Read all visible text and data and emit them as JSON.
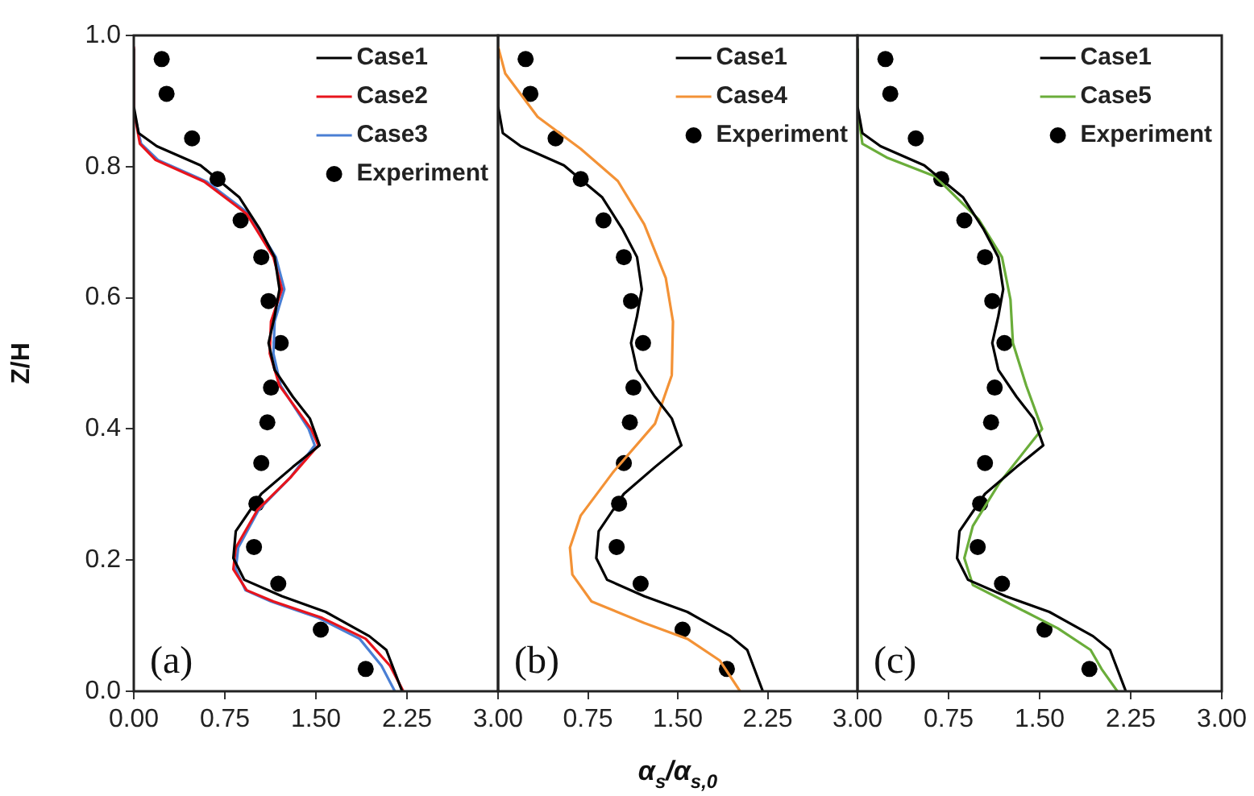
{
  "chart_data": [
    {
      "type": "line",
      "ylabel": "Z/H",
      "xlim": [
        0,
        3
      ],
      "ylim": [
        0,
        1
      ],
      "xticks": [
        {
          "value": 0,
          "label": "0.00"
        },
        {
          "value": 0.75,
          "label": "0.75"
        },
        {
          "value": 1.5,
          "label": "1.50"
        },
        {
          "value": 2.25,
          "label": "2.25"
        },
        {
          "value": 3,
          "label": "3.00"
        }
      ],
      "yticks": [
        {
          "value": 0,
          "label": "0.0"
        },
        0.2,
        0.4,
        0.6,
        0.8,
        {
          "value": 1,
          "label": "1.0"
        }
      ],
      "grid": false,
      "legend": "top right",
      "annotations": [
        "(a)"
      ],
      "series": [
        {
          "name": "Case1",
          "type": "line",
          "marker": "none",
          "color": "#000000",
          "x": [
            2.21,
            2.08,
            1.94,
            1.58,
            1.22,
            0.91,
            0.82,
            0.84,
            1.05,
            1.31,
            1.53,
            1.45,
            1.31,
            1.16,
            1.11,
            1.16,
            1.2,
            1.16,
            1.04,
            0.87,
            0.55,
            0.19,
            0.04,
            0,
            0
          ],
          "values": [
            0,
            0.063,
            0.084,
            0.121,
            0.145,
            0.17,
            0.203,
            0.244,
            0.301,
            0.342,
            0.375,
            0.416,
            0.449,
            0.49,
            0.531,
            0.572,
            0.613,
            0.662,
            0.704,
            0.753,
            0.802,
            0.831,
            0.851,
            0.892,
            0.98
          ]
        },
        {
          "name": "Case2",
          "type": "line",
          "marker": "none",
          "color": "#e8141c",
          "x": [
            2.22,
            2.11,
            1.91,
            1.55,
            1.15,
            0.93,
            0.82,
            0.84,
            1.02,
            1.29,
            1.52,
            1.46,
            1.2,
            1.12,
            1.13,
            1.22,
            1.15,
            0.93,
            0.58,
            0.18,
            0.05,
            0.01,
            0
          ],
          "values": [
            0,
            0.039,
            0.08,
            0.112,
            0.137,
            0.154,
            0.186,
            0.219,
            0.277,
            0.326,
            0.375,
            0.4,
            0.466,
            0.515,
            0.564,
            0.613,
            0.662,
            0.728,
            0.777,
            0.81,
            0.835,
            0.876,
            0.983
          ]
        },
        {
          "name": "Case3",
          "type": "line",
          "marker": "none",
          "color": "#4a7fd4",
          "x": [
            2.15,
            2.04,
            1.86,
            1.52,
            1.13,
            0.92,
            0.84,
            0.86,
            1.03,
            1.29,
            1.49,
            1.44,
            1.21,
            1.15,
            1.16,
            1.24,
            1.17,
            0.95,
            0.6,
            0.2,
            0.06,
            0.01,
            0
          ],
          "values": [
            0,
            0.039,
            0.08,
            0.112,
            0.137,
            0.154,
            0.186,
            0.219,
            0.277,
            0.326,
            0.375,
            0.4,
            0.466,
            0.515,
            0.564,
            0.613,
            0.662,
            0.728,
            0.777,
            0.81,
            0.835,
            0.876,
            0.983
          ]
        },
        {
          "name": "Experiment",
          "type": "scatter",
          "marker": "circle",
          "color": "#000000",
          "x": [
            0.23,
            0.27,
            0.48,
            0.69,
            0.88,
            1.05,
            1.11,
            1.21,
            1.13,
            1.1,
            1.05,
            1.01,
            0.99,
            1.19,
            1.54,
            1.91
          ],
          "values": [
            0.964,
            0.911,
            0.843,
            0.781,
            0.718,
            0.662,
            0.595,
            0.531,
            0.463,
            0.41,
            0.348,
            0.286,
            0.22,
            0.164,
            0.094,
            0.034
          ]
        }
      ]
    },
    {
      "type": "line",
      "xlabel": "α$_{s}$/α$_{s,0}$",
      "xlim": [
        0,
        3
      ],
      "ylim": [
        0,
        1
      ],
      "xticks": [
        {
          "value": 0,
          "label": null
        },
        {
          "value": 0.75,
          "label": "0.75"
        },
        {
          "value": 1.5,
          "label": "1.50"
        },
        {
          "value": 2.25,
          "label": "2.25"
        },
        {
          "value": 3,
          "label": "3.00"
        }
      ],
      "tick_labels": "x",
      "grid": false,
      "legend": "top right",
      "annotations": [
        "(b)"
      ],
      "series": [
        {
          "name": "Case1",
          "type": "line",
          "marker": "none",
          "color": "#000000",
          "x": [
            2.21,
            2.08,
            1.94,
            1.58,
            1.22,
            0.91,
            0.82,
            0.84,
            1.05,
            1.31,
            1.53,
            1.45,
            1.31,
            1.16,
            1.11,
            1.16,
            1.2,
            1.16,
            1.04,
            0.87,
            0.55,
            0.19,
            0.04,
            0,
            0
          ],
          "values": [
            0,
            0.063,
            0.084,
            0.121,
            0.145,
            0.17,
            0.203,
            0.244,
            0.301,
            0.342,
            0.375,
            0.416,
            0.449,
            0.49,
            0.531,
            0.572,
            0.613,
            0.662,
            0.704,
            0.753,
            0.802,
            0.831,
            0.851,
            0.892,
            0.98
          ]
        },
        {
          "name": "Case4",
          "type": "line",
          "marker": "none",
          "color": "#f39236",
          "x": [
            2.02,
            1.85,
            1.58,
            1.22,
            0.78,
            0.62,
            0.6,
            0.69,
            0.96,
            1.31,
            1.45,
            1.46,
            1.4,
            1.22,
            1,
            0.69,
            0.33,
            0.06,
            0
          ],
          "values": [
            0,
            0.047,
            0.08,
            0.104,
            0.137,
            0.178,
            0.219,
            0.268,
            0.334,
            0.408,
            0.482,
            0.564,
            0.63,
            0.712,
            0.778,
            0.827,
            0.876,
            0.942,
            0.983
          ]
        },
        {
          "name": "Experiment",
          "type": "scatter",
          "marker": "circle",
          "color": "#000000",
          "x": [
            0.23,
            0.27,
            0.48,
            0.69,
            0.88,
            1.05,
            1.11,
            1.21,
            1.13,
            1.1,
            1.05,
            1.01,
            0.99,
            1.19,
            1.54,
            1.91
          ],
          "values": [
            0.964,
            0.911,
            0.843,
            0.781,
            0.718,
            0.662,
            0.595,
            0.531,
            0.463,
            0.41,
            0.348,
            0.286,
            0.22,
            0.164,
            0.094,
            0.034
          ]
        }
      ]
    },
    {
      "type": "line",
      "xlim": [
        0,
        3
      ],
      "ylim": [
        0,
        1
      ],
      "xticks": [
        {
          "value": 0,
          "label": null
        },
        {
          "value": 0.75,
          "label": "0.75"
        },
        {
          "value": 1.5,
          "label": "1.50"
        },
        {
          "value": 2.25,
          "label": "2.25"
        },
        {
          "value": 3,
          "label": "3.00"
        }
      ],
      "tick_labels": "x",
      "grid": false,
      "legend": "top right",
      "annotations": [
        "(c)"
      ],
      "series": [
        {
          "name": "Case1",
          "type": "line",
          "marker": "none",
          "color": "#000000",
          "x": [
            2.21,
            2.08,
            1.94,
            1.58,
            1.22,
            0.91,
            0.82,
            0.84,
            1.05,
            1.31,
            1.53,
            1.45,
            1.31,
            1.16,
            1.11,
            1.16,
            1.2,
            1.16,
            1.04,
            0.87,
            0.55,
            0.19,
            0.04,
            0,
            0
          ],
          "values": [
            0,
            0.063,
            0.084,
            0.121,
            0.145,
            0.17,
            0.203,
            0.244,
            0.301,
            0.342,
            0.375,
            0.416,
            0.449,
            0.49,
            0.531,
            0.572,
            0.613,
            0.662,
            0.704,
            0.753,
            0.802,
            0.831,
            0.851,
            0.892,
            0.98
          ]
        },
        {
          "name": "Case5",
          "type": "line",
          "marker": "none",
          "color": "#6aad3a",
          "x": [
            2.14,
            2.01,
            1.92,
            1.65,
            1.3,
            0.95,
            0.88,
            0.95,
            1.17,
            1.52,
            1.39,
            1.28,
            1.26,
            1.19,
            1,
            0.64,
            0.24,
            0.04,
            0.01,
            0
          ],
          "values": [
            0,
            0.034,
            0.063,
            0.096,
            0.129,
            0.162,
            0.203,
            0.252,
            0.318,
            0.4,
            0.466,
            0.531,
            0.597,
            0.662,
            0.719,
            0.785,
            0.814,
            0.835,
            0.876,
            0.983
          ]
        },
        {
          "name": "Experiment",
          "type": "scatter",
          "marker": "circle",
          "color": "#000000",
          "x": [
            0.23,
            0.27,
            0.48,
            0.69,
            0.88,
            1.05,
            1.11,
            1.21,
            1.13,
            1.1,
            1.05,
            1.01,
            0.99,
            1.19,
            1.54,
            1.91
          ],
          "values": [
            0.964,
            0.911,
            0.843,
            0.781,
            0.718,
            0.662,
            0.595,
            0.531,
            0.463,
            0.41,
            0.348,
            0.286,
            0.22,
            0.164,
            0.094,
            0.034
          ]
        }
      ]
    }
  ]
}
